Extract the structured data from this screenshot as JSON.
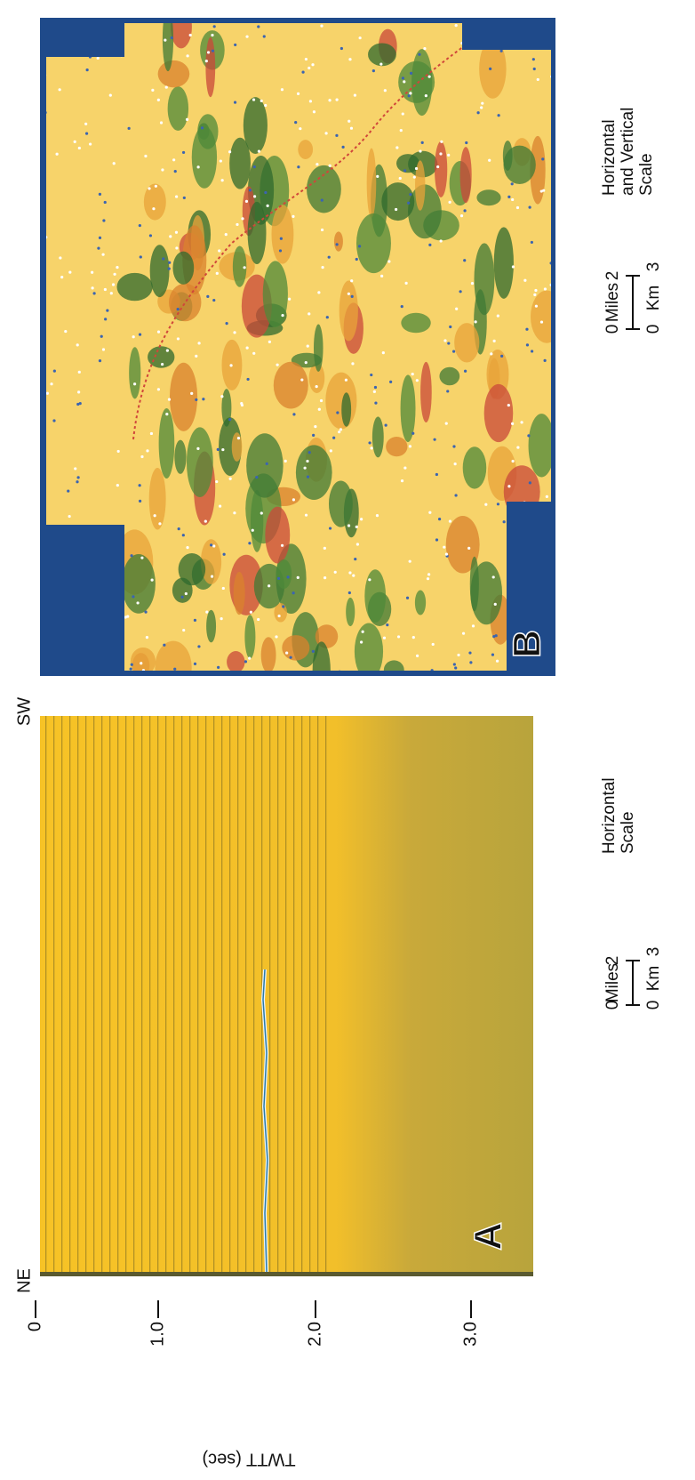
{
  "panel_a": {
    "label": "A",
    "left_label": "NE",
    "right_label": "SW",
    "axis_title": "TWTT (sec)",
    "axis_ticks": [
      "0",
      "1.0",
      "2.0",
      "3.0"
    ],
    "scale": {
      "top_unit": "Miles",
      "bottom_unit": "Km",
      "top_ticks": [
        "0",
        "2"
      ],
      "bottom_ticks": [
        "0",
        "3"
      ],
      "caption": [
        "Horizontal",
        "Scale"
      ]
    }
  },
  "panel_b": {
    "label": "B",
    "scale": {
      "top_unit": "Miles",
      "bottom_unit": "Km",
      "top_ticks": [
        "0",
        "2"
      ],
      "bottom_ticks": [
        "0",
        "3"
      ],
      "caption": [
        "Horizontal",
        "and Vertical",
        "Scale"
      ]
    }
  }
}
